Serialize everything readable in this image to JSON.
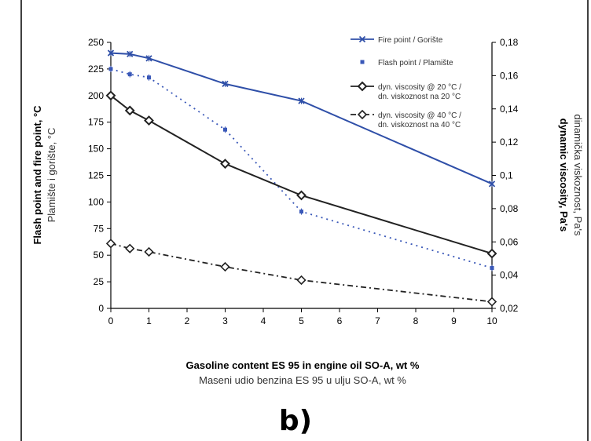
{
  "chart_data": {
    "type": "line",
    "panel_label": "b)",
    "x": [
      0,
      0.5,
      1,
      3,
      5,
      10
    ],
    "x_ticks": [
      "0",
      "1",
      "2",
      "3",
      "4",
      "5",
      "6",
      "7",
      "8",
      "9",
      "10"
    ],
    "xlim": [
      0,
      10
    ],
    "xlabel": "Gasoline content ES 95 in engine oil SO-A, wt %",
    "xlabel_secondary": "Maseni udio benzina ES 95 u ulju SO-A, wt %",
    "ylabel": "Flash point and fire point, °C",
    "ylabel_secondary": "Plamište i gorište, °C",
    "ylim": [
      0,
      250
    ],
    "y_ticks": [
      "0",
      "25",
      "50",
      "75",
      "100",
      "125",
      "150",
      "175",
      "200",
      "225",
      "250"
    ],
    "y2label": "dynamic viscosity, Pa's",
    "y2label_secondary": "dinamička viskoznost, Pa's",
    "y2lim": [
      0.02,
      0.18
    ],
    "y2_ticks": [
      "0,02",
      "0,04",
      "0,06",
      "0,08",
      "0,1",
      "0,12",
      "0,14",
      "0,16",
      "0,18"
    ],
    "legend_position": "top-right",
    "grid": false,
    "series": [
      {
        "name": "Fire point / Gorište",
        "axis": "left",
        "color": "#2f4fa8",
        "style": "solid",
        "marker": "x",
        "values": [
          240,
          239,
          235,
          211,
          195,
          117
        ]
      },
      {
        "name": "Flash point / Plamište",
        "axis": "left",
        "color": "#3a58b8",
        "style": "dotted",
        "marker": "square",
        "values": [
          225,
          220,
          217,
          168,
          91,
          38
        ]
      },
      {
        "name": "dyn. viscosity @ 20 °C / dn. viskoznost na 20 °C",
        "axis": "right",
        "color": "#222222",
        "style": "solid",
        "marker": "diamond",
        "values": [
          0.148,
          0.139,
          0.133,
          0.107,
          0.088,
          0.053
        ]
      },
      {
        "name": "dyn. viscosity @ 40 °C / dn. viskoznost na 40 °C",
        "axis": "right",
        "color": "#222222",
        "style": "dashdot",
        "marker": "diamond-open",
        "values": [
          0.059,
          0.056,
          0.054,
          0.045,
          0.037,
          0.024
        ]
      }
    ]
  }
}
